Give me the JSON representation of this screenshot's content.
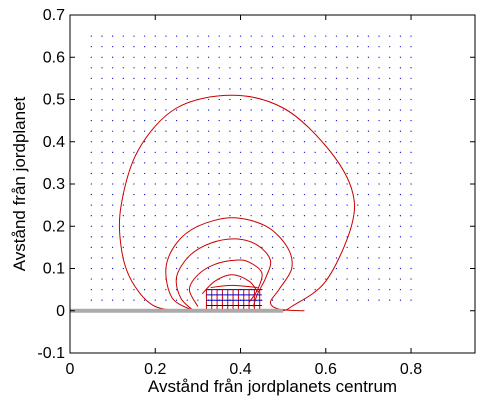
{
  "chart_data": {
    "type": "contour",
    "xlabel": "Avstånd från jordplanets centrum",
    "ylabel": "Avstånd från jordplanet",
    "xlim": [
      0,
      0.95
    ],
    "ylim": [
      -0.1,
      0.7
    ],
    "x_ticks": [
      0,
      0.2,
      0.4,
      0.6,
      0.8
    ],
    "x_tick_labels": [
      "0",
      "0.2",
      "0.4",
      "0.6",
      "0.8"
    ],
    "y_ticks": [
      -0.1,
      0,
      0.1,
      0.2,
      0.3,
      0.4,
      0.5,
      0.6,
      0.7
    ],
    "y_tick_labels": [
      "-0.1",
      "0",
      "0.1",
      "0.2",
      "0.3",
      "0.4",
      "0.5",
      "0.6",
      "0.7"
    ],
    "grid": false,
    "ground_plane": {
      "x": [
        0,
        0.5
      ],
      "y": 0,
      "color": "#aaaaaa"
    },
    "contours": [
      {
        "color": "#cc0000",
        "points": [
          [
            0.29,
            0
          ],
          [
            0.2,
            0.01
          ],
          [
            0.145,
            0.07
          ],
          [
            0.12,
            0.15
          ],
          [
            0.12,
            0.25
          ],
          [
            0.16,
            0.38
          ],
          [
            0.25,
            0.48
          ],
          [
            0.38,
            0.51
          ],
          [
            0.5,
            0.48
          ],
          [
            0.6,
            0.39
          ],
          [
            0.66,
            0.29
          ],
          [
            0.66,
            0.2
          ],
          [
            0.6,
            0.07
          ],
          [
            0.52,
            0.01
          ],
          [
            0.5,
            0
          ]
        ]
      },
      {
        "color": "#cc0000",
        "points": [
          [
            0.29,
            0
          ],
          [
            0.24,
            0.03
          ],
          [
            0.225,
            0.1
          ],
          [
            0.25,
            0.16
          ],
          [
            0.3,
            0.2
          ],
          [
            0.38,
            0.22
          ],
          [
            0.46,
            0.2
          ],
          [
            0.51,
            0.15
          ],
          [
            0.52,
            0.1
          ],
          [
            0.49,
            0.05
          ],
          [
            0.47,
            0.02
          ],
          [
            0.49,
            0.004
          ],
          [
            0.55,
            0
          ]
        ]
      },
      {
        "color": "#cc0000",
        "points": [
          [
            0.29,
            0
          ],
          [
            0.26,
            0.03
          ],
          [
            0.25,
            0.08
          ],
          [
            0.28,
            0.13
          ],
          [
            0.33,
            0.16
          ],
          [
            0.39,
            0.17
          ],
          [
            0.44,
            0.155
          ],
          [
            0.47,
            0.12
          ],
          [
            0.46,
            0.08
          ],
          [
            0.44,
            0.04
          ],
          [
            0.43,
            0.01
          ]
        ]
      },
      {
        "color": "#cc0000",
        "points": [
          [
            0.3,
            0.01
          ],
          [
            0.28,
            0.05
          ],
          [
            0.3,
            0.085
          ],
          [
            0.34,
            0.11
          ],
          [
            0.39,
            0.12
          ],
          [
            0.42,
            0.115
          ],
          [
            0.45,
            0.09
          ],
          [
            0.44,
            0.05
          ],
          [
            0.42,
            0.02
          ]
        ]
      },
      {
        "color": "#cc0000",
        "points": [
          [
            0.31,
            0.04
          ],
          [
            0.34,
            0.07
          ],
          [
            0.38,
            0.085
          ],
          [
            0.42,
            0.07
          ],
          [
            0.44,
            0.045
          ]
        ]
      },
      {
        "color": "#cc0000",
        "points": [
          [
            0.33,
            0.055
          ],
          [
            0.38,
            0.06
          ],
          [
            0.44,
            0.055
          ]
        ]
      }
    ],
    "vector_field": {
      "color": "#0000cc",
      "x_range": [
        0.05,
        0.8
      ],
      "y_range": [
        0.0,
        0.65
      ],
      "step": 0.025,
      "source": [
        0.375,
        0.0
      ]
    },
    "current_sheet": {
      "x_range": [
        0.32,
        0.45
      ],
      "y_range": [
        0.0,
        0.05
      ],
      "vertical_color": "#cc0000",
      "horizontal_color": "#0000cc"
    }
  }
}
